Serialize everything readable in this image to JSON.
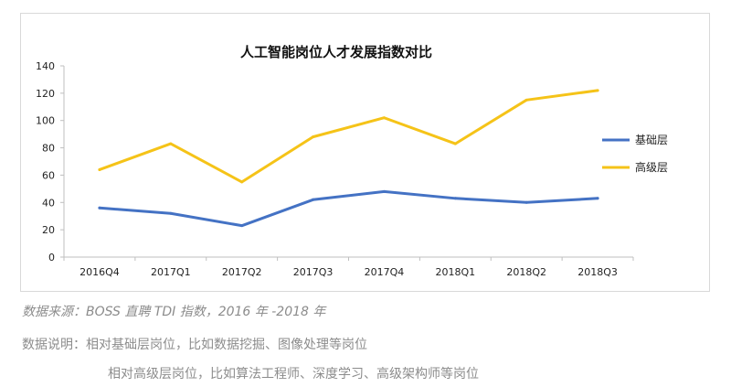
{
  "chart_data": {
    "type": "line",
    "title": "人工智能岗位人才发展指数对比",
    "categories": [
      "2016Q4",
      "2017Q1",
      "2017Q2",
      "2017Q3",
      "2017Q4",
      "2018Q1",
      "2018Q2",
      "2018Q3"
    ],
    "series": [
      {
        "name": "基础层",
        "color": "#4472c4",
        "values": [
          36,
          32,
          23,
          42,
          48,
          43,
          40,
          43
        ]
      },
      {
        "name": "高级层",
        "color": "#f5c318",
        "values": [
          64,
          83,
          55,
          88,
          102,
          83,
          115,
          122
        ]
      }
    ],
    "ylim": [
      0,
      140
    ],
    "yticks": [
      0,
      20,
      40,
      60,
      80,
      100,
      120,
      140
    ],
    "grid": false,
    "legend": "right"
  },
  "footer": {
    "source": "数据来源：BOSS 直聘 TDI 指数，2016 年 -2018 年",
    "note_line1": "数据说明：相对基础层岗位，比如数据挖掘、图像处理等岗位",
    "note_line2": "相对高级层岗位，比如算法工程师、深度学习、高级架构师等岗位"
  }
}
